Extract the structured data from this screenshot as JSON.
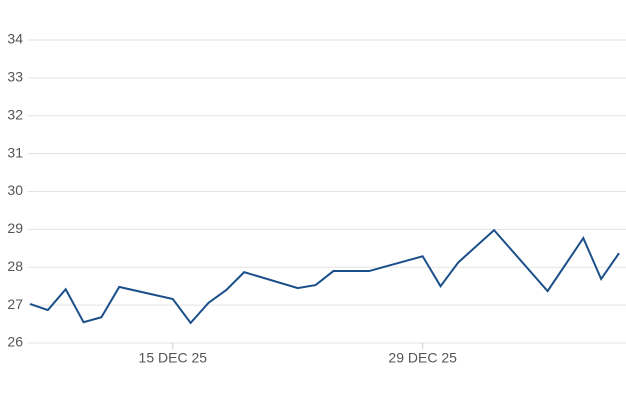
{
  "chart_data": {
    "type": "line",
    "x": [
      "2025-12-07",
      "2025-12-08",
      "2025-12-09",
      "2025-12-10",
      "2025-12-11",
      "2025-12-12",
      "2025-12-15",
      "2025-12-16",
      "2025-12-17",
      "2025-12-18",
      "2025-12-19",
      "2025-12-22",
      "2025-12-23",
      "2025-12-24",
      "2025-12-26",
      "2025-12-29",
      "2025-12-30",
      "2025-12-31",
      "2026-01-02",
      "2026-01-05",
      "2026-01-07",
      "2026-01-08",
      "2026-01-09"
    ],
    "values": [
      27.03,
      26.87,
      27.42,
      26.55,
      26.68,
      27.48,
      27.16,
      26.53,
      27.06,
      27.4,
      27.87,
      27.45,
      27.53,
      27.9,
      27.9,
      28.29,
      27.5,
      28.13,
      28.98,
      27.37,
      28.77,
      27.69,
      28.37
    ],
    "color": "#1b4f8a",
    "xlim": [
      "2025-12-07",
      "2026-01-09"
    ],
    "xticks": [
      {
        "value": "2025-12-15",
        "label": "15 DEC 25"
      },
      {
        "value": "2025-12-29",
        "label": "29 DEC 25"
      }
    ],
    "ylim": [
      26,
      34
    ],
    "yticks": [
      26,
      27,
      28,
      29,
      30,
      31,
      32,
      33,
      34
    ],
    "grid": true
  }
}
